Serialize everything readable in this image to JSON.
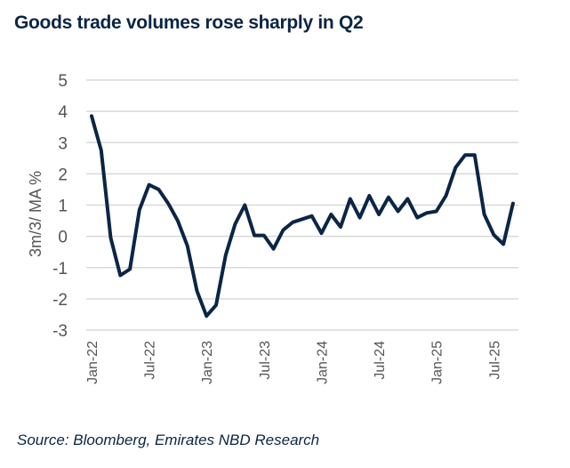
{
  "chart_data": {
    "type": "line",
    "title": "Goods trade volumes rose sharply in Q2",
    "xlabel": "",
    "ylabel": "3m/3/ MA %",
    "ylim": [
      -3,
      5
    ],
    "yticks": [
      5,
      4,
      3,
      2,
      1,
      0,
      -1,
      -2,
      -3
    ],
    "grid": true,
    "legend": "none",
    "x_tick_labels": [
      "Jan-22",
      "Jul-22",
      "Jan-23",
      "Jul-23",
      "Jan-24",
      "Jul-24",
      "Jan-25",
      "Jul-25"
    ],
    "x_tick_indices": [
      0,
      6,
      12,
      18,
      24,
      30,
      36,
      42
    ],
    "x": [
      "Jan-22",
      "Feb-22",
      "Mar-22",
      "Apr-22",
      "May-22",
      "Jun-22",
      "Jul-22",
      "Aug-22",
      "Sep-22",
      "Oct-22",
      "Nov-22",
      "Dec-22",
      "Jan-23",
      "Feb-23",
      "Mar-23",
      "Apr-23",
      "May-23",
      "Jun-23",
      "Jul-23",
      "Aug-23",
      "Sep-23",
      "Oct-23",
      "Nov-23",
      "Dec-23",
      "Jan-24",
      "Feb-24",
      "Mar-24",
      "Apr-24",
      "May-24",
      "Jun-24",
      "Jul-24",
      "Aug-24",
      "Sep-24",
      "Oct-24",
      "Nov-24",
      "Dec-24",
      "Jan-25",
      "Feb-25",
      "Mar-25",
      "Apr-25",
      "May-25",
      "Jun-25",
      "Jul-25",
      "Aug-25",
      "Sep-25"
    ],
    "series": [
      {
        "name": "Goods trade volumes",
        "color": "#0b2545",
        "values": [
          3.85,
          2.75,
          -0.05,
          -1.25,
          -1.05,
          0.85,
          1.65,
          1.5,
          1.05,
          0.5,
          -0.3,
          -1.75,
          -2.55,
          -2.2,
          -0.6,
          0.4,
          1.0,
          0.03,
          0.03,
          -0.4,
          0.2,
          0.45,
          0.55,
          0.65,
          0.1,
          0.7,
          0.3,
          1.2,
          0.6,
          1.3,
          0.7,
          1.25,
          0.8,
          1.2,
          0.6,
          0.75,
          0.8,
          1.3,
          2.2,
          2.6,
          2.6,
          0.7,
          0.05,
          -0.25,
          1.05
        ]
      }
    ]
  },
  "source": "Source: Bloomberg, Emirates NBD Research"
}
